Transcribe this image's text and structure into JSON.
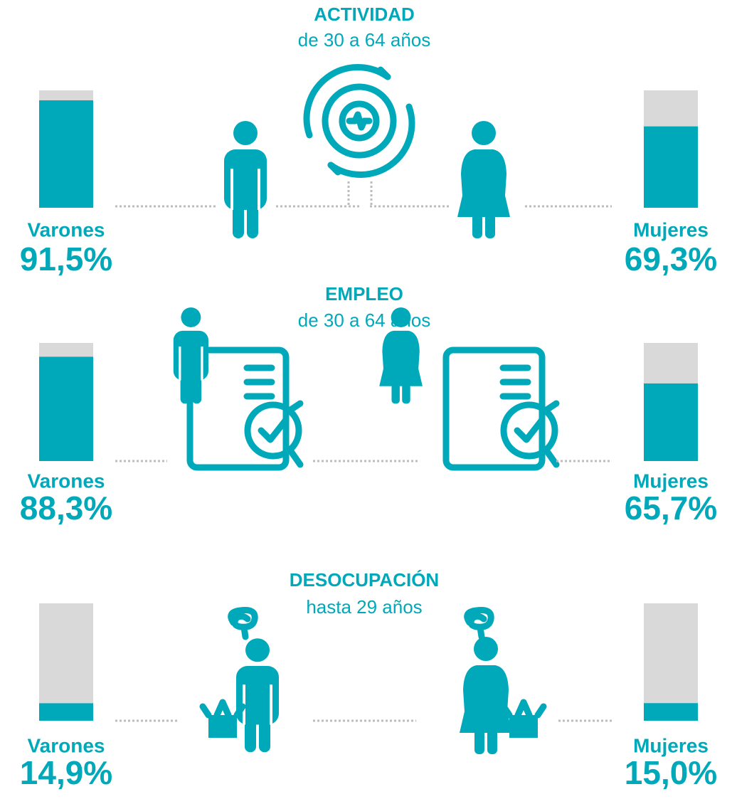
{
  "chart_data": [
    {
      "type": "bar",
      "title": "ACTIVIDAD",
      "subtitle": "de 30 a 64 años",
      "categories": [
        "Varones",
        "Mujeres"
      ],
      "values": [
        91.5,
        69.3
      ],
      "value_labels": [
        "91,5%",
        "69,3%"
      ],
      "ylim": [
        0,
        100
      ],
      "color": "#00a9ba",
      "background_color": "#d9d9d9"
    },
    {
      "type": "bar",
      "title": "EMPLEO",
      "subtitle": "de 30 a 64 años",
      "categories": [
        "Varones",
        "Mujeres"
      ],
      "values": [
        88.3,
        65.7
      ],
      "value_labels": [
        "88,3%",
        "65,7%"
      ],
      "ylim": [
        0,
        100
      ],
      "color": "#00a9ba",
      "background_color": "#d9d9d9"
    },
    {
      "type": "bar",
      "title": "DESOCUPACIÓN",
      "subtitle": "hasta 29 años",
      "categories": [
        "Varones",
        "Mujeres"
      ],
      "values": [
        14.9,
        15.0
      ],
      "value_labels": [
        "14,9%",
        "15,0%"
      ],
      "ylim": [
        0,
        100
      ],
      "color": "#00a9ba",
      "background_color": "#d9d9d9"
    }
  ]
}
